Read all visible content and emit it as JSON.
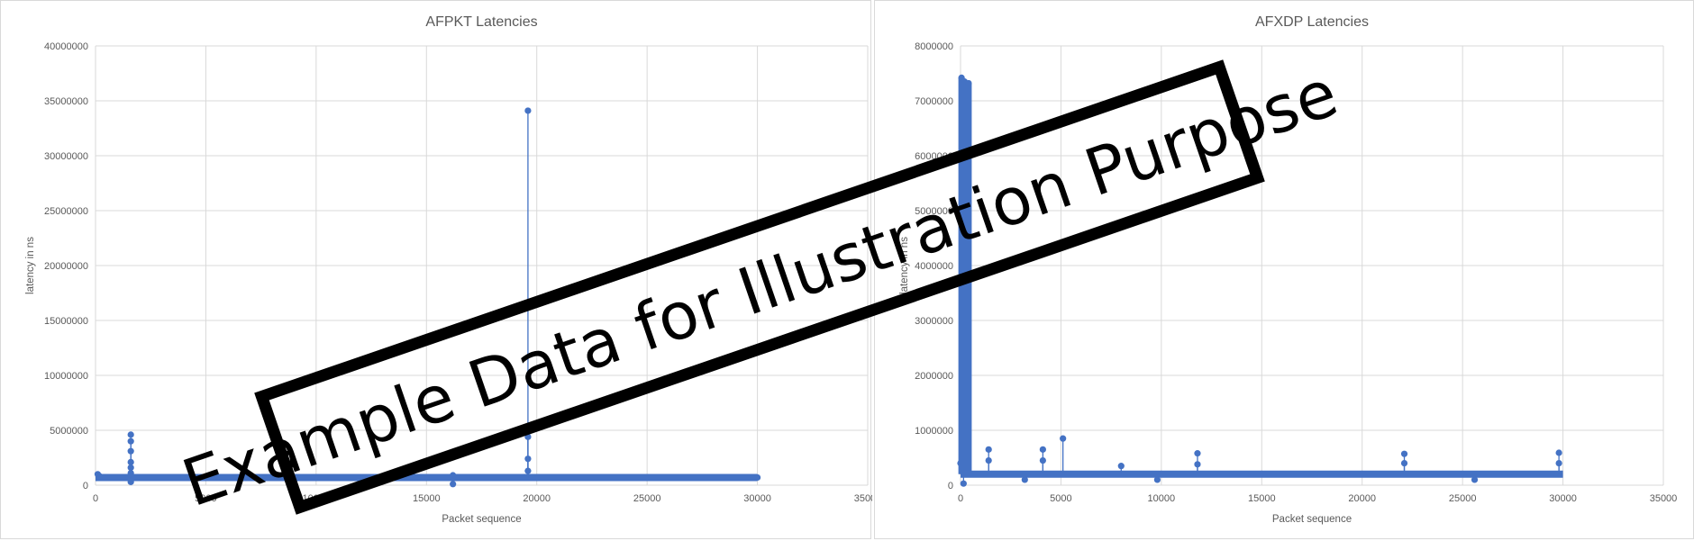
{
  "chart_data": [
    {
      "type": "scatter",
      "title": "AFPKT Latencies",
      "xlabel": "Packet sequence",
      "ylabel": "latency in ns",
      "xlim": [
        0,
        35000
      ],
      "ylim": [
        0,
        40000000
      ],
      "xticks": [
        "0",
        "5000",
        "10000",
        "15000",
        "20000",
        "25000",
        "30000",
        "35000"
      ],
      "yticks": [
        "0",
        "5000000",
        "10000000",
        "15000000",
        "20000000",
        "25000000",
        "30000000",
        "35000000",
        "40000000"
      ],
      "grid": true,
      "color": "#4472C4",
      "baseline": {
        "x_start": 0,
        "x_end": 30000,
        "value": 700000
      },
      "series": [
        {
          "values": [
            {
              "x": 100,
              "y": 1000000
            },
            {
              "x": 200,
              "y": 800000
            },
            {
              "x": 1600,
              "y": 4600000
            },
            {
              "x": 1600,
              "y": 4000000
            },
            {
              "x": 1600,
              "y": 3100000
            },
            {
              "x": 1600,
              "y": 2100000
            },
            {
              "x": 1600,
              "y": 1600000
            },
            {
              "x": 1600,
              "y": 1100000
            },
            {
              "x": 1600,
              "y": 300000
            },
            {
              "x": 8700,
              "y": 600000
            },
            {
              "x": 16200,
              "y": 900000
            },
            {
              "x": 16200,
              "y": 100000
            },
            {
              "x": 19600,
              "y": 34100000
            },
            {
              "x": 19600,
              "y": 5300000
            },
            {
              "x": 19600,
              "y": 4400000
            },
            {
              "x": 19600,
              "y": 2400000
            },
            {
              "x": 19600,
              "y": 1300000
            },
            {
              "x": 30000,
              "y": 700000
            }
          ]
        }
      ]
    },
    {
      "type": "scatter",
      "title": "AFXDP Latencies",
      "xlabel": "Packet sequence",
      "ylabel": "latency in ns",
      "xlim": [
        0,
        35000
      ],
      "ylim": [
        0,
        8000000
      ],
      "xticks": [
        "0",
        "5000",
        "10000",
        "15000",
        "20000",
        "25000",
        "30000",
        "35000"
      ],
      "yticks": [
        "0",
        "1000000",
        "2000000",
        "3000000",
        "4000000",
        "5000000",
        "6000000",
        "7000000",
        "8000000"
      ],
      "grid": true,
      "color": "#4472C4",
      "baseline": {
        "x_start": 0,
        "x_end": 30000,
        "value": 200000
      },
      "series": [
        {
          "values": [
            {
              "x": 0,
              "y": 400000
            },
            {
              "x": 50,
              "y": 7420000
            },
            {
              "x": 200,
              "y": 7350000
            },
            {
              "x": 400,
              "y": 7320000
            },
            {
              "x": 150,
              "y": 30000
            },
            {
              "x": 1400,
              "y": 650000
            },
            {
              "x": 1400,
              "y": 450000
            },
            {
              "x": 4100,
              "y": 650000
            },
            {
              "x": 4100,
              "y": 450000
            },
            {
              "x": 5100,
              "y": 850000
            },
            {
              "x": 8000,
              "y": 350000
            },
            {
              "x": 11800,
              "y": 580000
            },
            {
              "x": 11800,
              "y": 380000
            },
            {
              "x": 22100,
              "y": 570000
            },
            {
              "x": 22100,
              "y": 400000
            },
            {
              "x": 29800,
              "y": 590000
            },
            {
              "x": 29800,
              "y": 400000
            },
            {
              "x": 3200,
              "y": 100000
            },
            {
              "x": 9800,
              "y": 100000
            },
            {
              "x": 25600,
              "y": 100000
            }
          ]
        }
      ]
    }
  ],
  "watermark": {
    "text": "Example Data for Illustration Purpose"
  }
}
